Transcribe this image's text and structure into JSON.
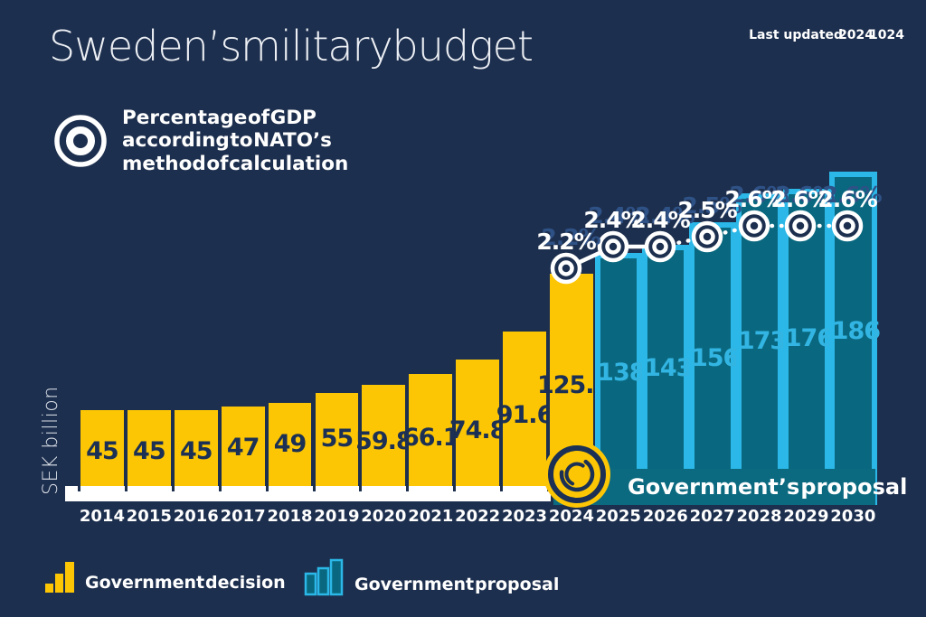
{
  "title": "Sweden’s military budget",
  "last_updated": {
    "label": "Last updated",
    "year": "2024",
    "date": "1024"
  },
  "gdp_note": {
    "lines": [
      "Percentage of GDP",
      "according to NATO’s",
      "method of calculation"
    ]
  },
  "y_axis_label": "SEK billion",
  "proposal_banner": "Government’s proposal",
  "legend": {
    "decision": "Government decision",
    "proposal": "Government proposal"
  },
  "colors": {
    "background": "#1d2f4e",
    "decision_bar": "#fdc605",
    "proposal_fill": "#09687f",
    "proposal_stroke": "#2bb7e7",
    "proposal_label_text": "#33b5e3",
    "decision_label_text": "#1b3054",
    "pct_shadow": "#2e5186",
    "axis_white": "#ffffff"
  },
  "chart_data": {
    "type": "bar",
    "title": "Sweden’s military budget",
    "xlabel": "",
    "ylabel": "SEK billion",
    "categories": [
      "2014",
      "2015",
      "2016",
      "2017",
      "2018",
      "2019",
      "2020",
      "2021",
      "2022",
      "2023",
      "2024",
      "2025",
      "2026",
      "2027",
      "2028",
      "2029",
      "2030"
    ],
    "series": [
      {
        "name": "Government decision",
        "values": [
          45,
          45,
          45,
          47,
          49,
          55,
          59.8,
          66.1,
          74.8,
          91.6,
          125.5,
          null,
          null,
          null,
          null,
          null,
          null
        ]
      },
      {
        "name": "Government proposal",
        "values": [
          null,
          null,
          null,
          null,
          null,
          null,
          null,
          null,
          null,
          null,
          null,
          138,
          143,
          156,
          173,
          176,
          186
        ]
      }
    ],
    "line_series": {
      "name": "Percentage of GDP according to NATO’s method of calculation",
      "unit": "%",
      "x": [
        "2024",
        "2025",
        "2026",
        "2027",
        "2028",
        "2029",
        "2030"
      ],
      "values": [
        2.2,
        2.4,
        2.4,
        2.5,
        2.6,
        2.6,
        2.6
      ]
    },
    "value_labels": true,
    "grid": false,
    "legend_position": "bottom"
  }
}
